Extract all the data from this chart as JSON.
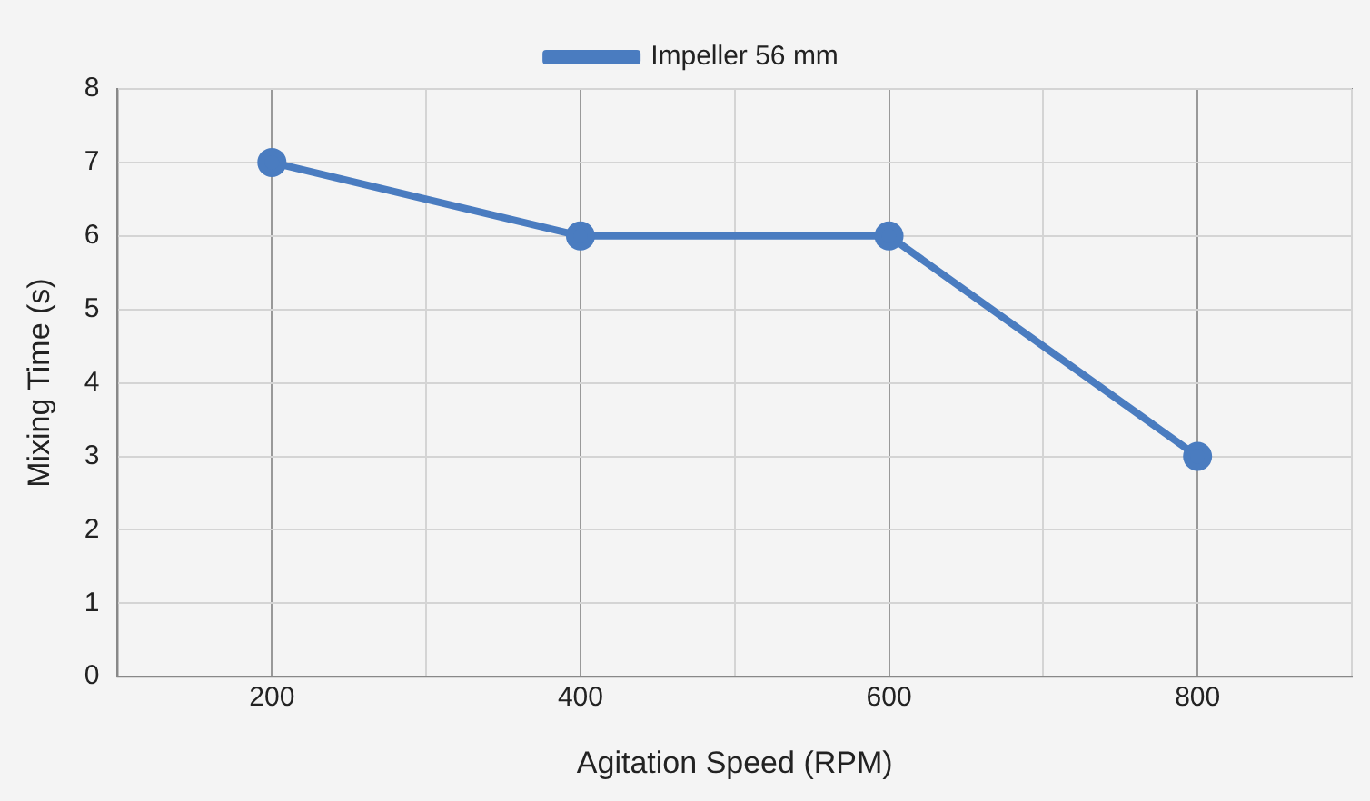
{
  "chart_data": {
    "type": "line",
    "xlabel": "Agitation Speed (RPM)",
    "ylabel": "Mixing Time (s)",
    "x": [
      200,
      400,
      600,
      800
    ],
    "series": [
      {
        "name": "Impeller 56 mm",
        "color": "#4a7cc0",
        "values": [
          7,
          6,
          6,
          3
        ]
      }
    ],
    "xlim": [
      100,
      900
    ],
    "xticks": [
      {
        "value": 100,
        "label": null
      },
      200,
      {
        "value": 300,
        "label": null
      },
      400,
      {
        "value": 500,
        "label": null
      },
      600,
      {
        "value": 700,
        "label": null
      },
      800,
      {
        "value": 900,
        "label": null
      }
    ],
    "ylim": [
      0,
      8
    ],
    "yticks": [
      0,
      1,
      2,
      3,
      4,
      5,
      6,
      7,
      8
    ],
    "grid": true,
    "legend": "top",
    "marker": "circle",
    "line_style": "solid"
  }
}
